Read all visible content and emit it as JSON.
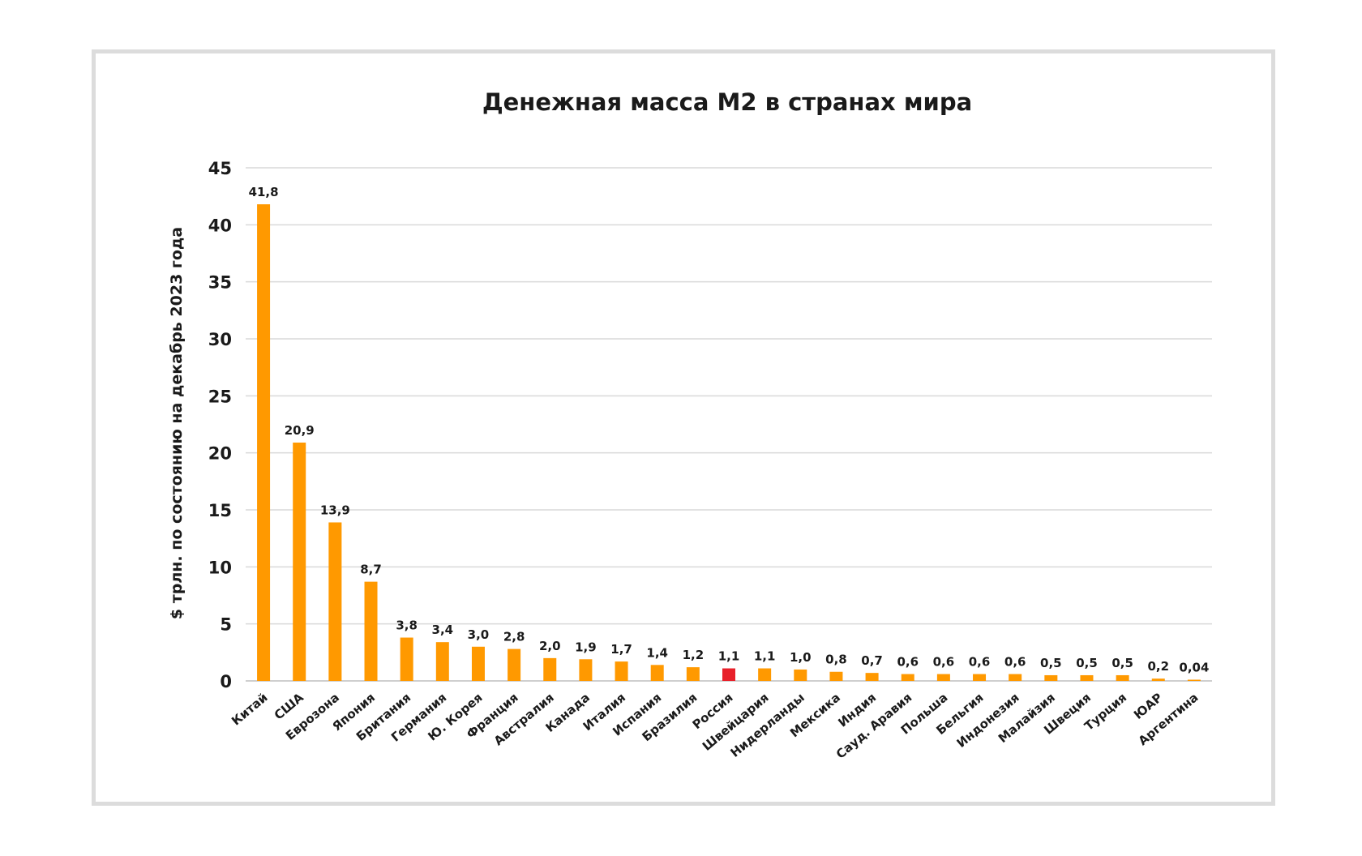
{
  "chart_data": {
    "type": "bar",
    "title": "Денежная масса М2 в странах мира",
    "ylabel": "$ трлн. по состоянию на декабрь 2023 года",
    "xlabel": "",
    "ylim": [
      0,
      45
    ],
    "yticks": [
      "0",
      "5",
      "10",
      "15",
      "20",
      "25",
      "30",
      "35",
      "40",
      "45"
    ],
    "grid": true,
    "categories": [
      "Китай",
      "США",
      "Еврозона",
      "Япония",
      "Британия",
      "Германия",
      "Ю. Корея",
      "Франция",
      "Австралия",
      "Канада",
      "Италия",
      "Испания",
      "Бразилия",
      "Россия",
      "Швейцария",
      "Нидерланды",
      "Мексика",
      "Индия",
      "Сауд. Аравия",
      "Польша",
      "Бельгия",
      "Индонезия",
      "Малайзия",
      "Швеция",
      "Турция",
      "ЮАР",
      "Аргентина"
    ],
    "values": [
      41.8,
      20.9,
      13.9,
      8.7,
      3.8,
      3.4,
      3.0,
      2.8,
      2.0,
      1.9,
      1.7,
      1.4,
      1.2,
      1.1,
      1.1,
      1.0,
      0.8,
      0.7,
      0.6,
      0.6,
      0.6,
      0.6,
      0.5,
      0.5,
      0.5,
      0.2,
      0.04
    ],
    "data_labels": [
      "41,8",
      "20,9",
      "13,9",
      "8,7",
      "3,8",
      "3,4",
      "3,0",
      "2,8",
      "2,0",
      "1,9",
      "1,7",
      "1,4",
      "1,2",
      "1,1",
      "1,1",
      "1,0",
      "0,8",
      "0,7",
      "0,6",
      "0,6",
      "0,6",
      "0,6",
      "0,5",
      "0,5",
      "0,5",
      "0,2",
      "0,04"
    ],
    "colors": {
      "default": "#FF9900",
      "highlight": "#E8202A"
    },
    "highlight_category": "Россия"
  }
}
